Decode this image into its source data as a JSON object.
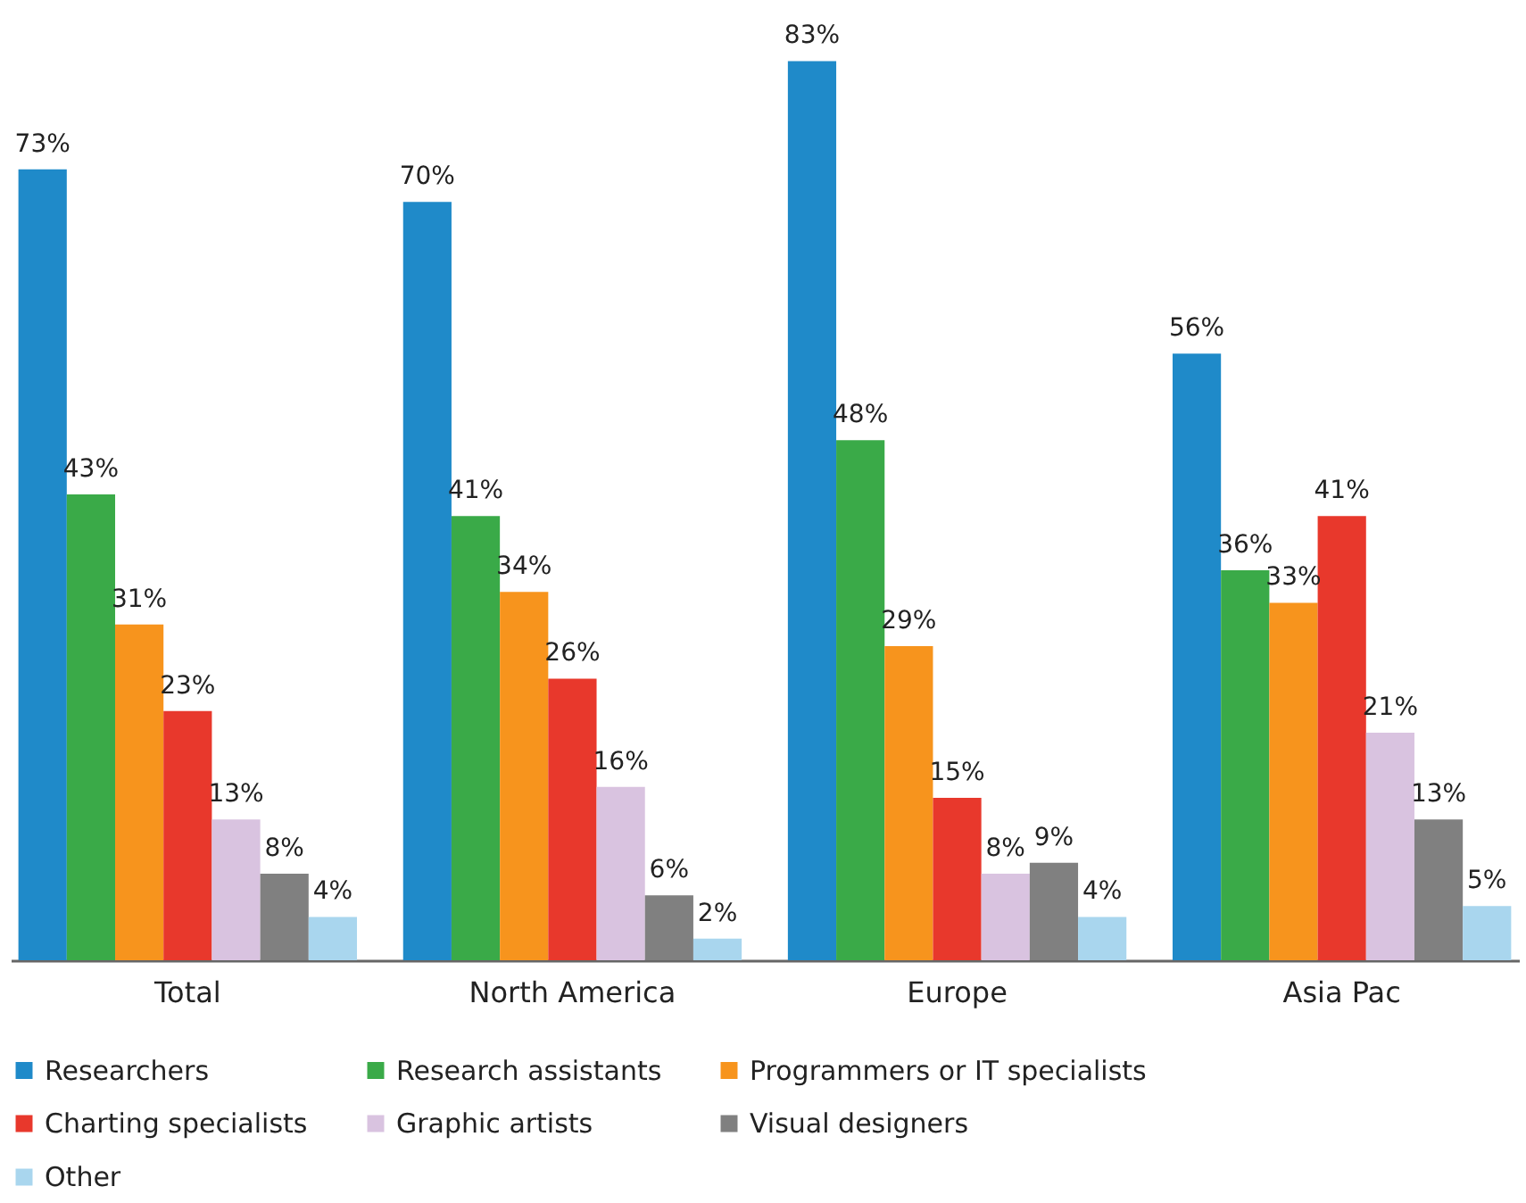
{
  "chart_data": {
    "type": "bar",
    "categories": [
      "Total",
      "North America",
      "Europe",
      "Asia Pac"
    ],
    "series": [
      {
        "name": "Researchers",
        "color": "#1f8ac9",
        "values": [
          73,
          70,
          83,
          56
        ],
        "value_labels": [
          "73%",
          "70%",
          "83%",
          "56%"
        ]
      },
      {
        "name": "Research assistants",
        "color": "#3aaa48",
        "values": [
          43,
          41,
          48,
          36
        ],
        "value_labels": [
          "43%",
          "41%",
          "48%",
          "36%"
        ]
      },
      {
        "name": "Programmers or IT specialists",
        "color": "#f7941d",
        "values": [
          31,
          34,
          29,
          33
        ],
        "value_labels": [
          "31%",
          "34%",
          "29%",
          "33%"
        ]
      },
      {
        "name": "Charting specialists",
        "color": "#e8382c",
        "values": [
          23,
          26,
          15,
          41
        ],
        "value_labels": [
          "23%",
          "26%",
          "15%",
          "41%"
        ]
      },
      {
        "name": "Graphic artists",
        "color": "#d9c3e0",
        "values": [
          13,
          16,
          8,
          21
        ],
        "value_labels": [
          "13%",
          "16%",
          "8%",
          "21%"
        ]
      },
      {
        "name": "Visual designers",
        "color": "#808080",
        "values": [
          8,
          6,
          9,
          13
        ],
        "value_labels": [
          "8%",
          "6%",
          "9%",
          "13%"
        ]
      },
      {
        "name": "Other",
        "color": "#a9d6ee",
        "values": [
          4,
          2,
          4,
          5
        ],
        "value_labels": [
          "4%",
          "2%",
          "4%",
          "5%"
        ]
      }
    ],
    "legend": "bottom",
    "grid": false,
    "tick_labels": "x"
  }
}
